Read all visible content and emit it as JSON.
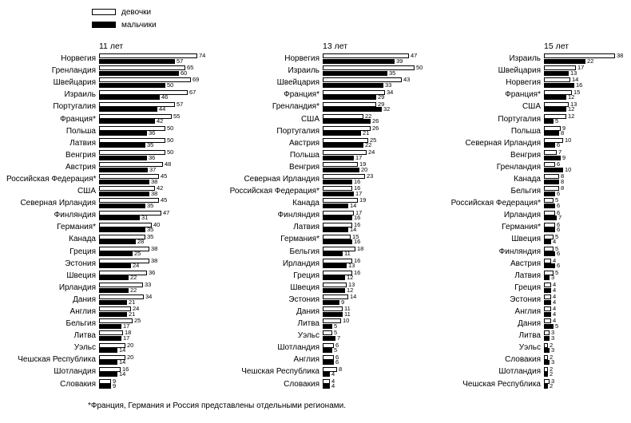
{
  "legend": {
    "girls": "девочки",
    "boys": "мальчики"
  },
  "footnote": "*Франция, Германия и Россия представлены отдельными регионами.",
  "colors": {
    "girls_fill": "#ffffff",
    "boys_fill": "#000000",
    "outline": "#000000",
    "background": "#ffffff"
  },
  "chart_data": [
    {
      "type": "bar",
      "orientation": "horizontal",
      "title": "11 лет",
      "legend_position": "top-left",
      "grid": false,
      "xlim": [
        0,
        80
      ],
      "categories": [
        "Норвегия",
        "Гренландия",
        "Швейцария",
        "Израиль",
        "Португалия",
        "Франция*",
        "Польша",
        "Латвия",
        "Венгрия",
        "Австрия",
        "Российская Федерация*",
        "США",
        "Северная Ирландия",
        "Финляндия",
        "Германия*",
        "Канада",
        "Греция",
        "Эстония",
        "Швеция",
        "Ирландия",
        "Дания",
        "Англия",
        "Бельгия",
        "Литва",
        "Уэльс",
        "Чешская Республика",
        "Шотландия",
        "Словакия"
      ],
      "series": [
        {
          "name": "девочки",
          "values": [
            74,
            65,
            69,
            67,
            57,
            55,
            50,
            50,
            50,
            48,
            45,
            42,
            45,
            47,
            40,
            35,
            38,
            38,
            36,
            33,
            34,
            24,
            25,
            18,
            20,
            20,
            16,
            9
          ]
        },
        {
          "name": "мальчики",
          "values": [
            57,
            60,
            50,
            46,
            44,
            42,
            36,
            35,
            36,
            37,
            38,
            38,
            35,
            31,
            35,
            28,
            25,
            24,
            22,
            22,
            21,
            21,
            17,
            17,
            14,
            14,
            14,
            9
          ]
        }
      ]
    },
    {
      "type": "bar",
      "orientation": "horizontal",
      "title": "13 лет",
      "grid": false,
      "xlim": [
        0,
        55
      ],
      "categories": [
        "Норвегия",
        "Израиль",
        "Швейцария",
        "Франция*",
        "Гренландия*",
        "США",
        "Португалия",
        "Австрия",
        "Польша",
        "Венгрия",
        "Северная Ирландия",
        "Российская Федерация*",
        "Канада",
        "Финляндия",
        "Латвия",
        "Германия*",
        "Бельгия",
        "Ирландия",
        "Греция",
        "Швеция",
        "Эстония",
        "Дания",
        "Литва",
        "Уэльс",
        "Шотландия",
        "Англия",
        "Чешская Республика",
        "Словакия"
      ],
      "series": [
        {
          "name": "девочки",
          "values": [
            47,
            50,
            43,
            34,
            29,
            22,
            26,
            25,
            24,
            19,
            23,
            16,
            19,
            17,
            16,
            15,
            18,
            16,
            16,
            13,
            14,
            11,
            10,
            5,
            6,
            6,
            8,
            4
          ]
        },
        {
          "name": "мальчики",
          "values": [
            39,
            35,
            33,
            29,
            32,
            26,
            21,
            22,
            17,
            20,
            16,
            17,
            14,
            16,
            14,
            16,
            11,
            13,
            12,
            12,
            9,
            11,
            5,
            7,
            5,
            6,
            4,
            4
          ]
        }
      ]
    },
    {
      "type": "bar",
      "orientation": "horizontal",
      "title": "15 лет",
      "grid": false,
      "xlim": [
        0,
        42
      ],
      "categories": [
        "Израиль",
        "Швейцария",
        "Норвегия",
        "Франция*",
        "США",
        "Португалия",
        "Польша",
        "Северная Ирландия",
        "Венгрия",
        "Гренландия",
        "Канада",
        "Бельгия",
        "Российская Федерация*",
        "Ирландия",
        "Германия*",
        "Швеция",
        "Финляндия",
        "Австрия",
        "Латвия",
        "Греция",
        "Эстония",
        "Англия",
        "Дания",
        "Литва",
        "Уэльс",
        "Словакия",
        "Шотландия",
        "Чешская Республика"
      ],
      "series": [
        {
          "name": "девочки",
          "values": [
            38,
            17,
            14,
            15,
            13,
            12,
            9,
            10,
            7,
            6,
            8,
            8,
            5,
            6,
            6,
            5,
            5,
            4,
            5,
            4,
            4,
            4,
            4,
            3,
            2,
            2,
            2,
            3
          ]
        },
        {
          "name": "мальчики",
          "values": [
            22,
            13,
            16,
            12,
            12,
            5,
            8,
            6,
            9,
            10,
            8,
            6,
            6,
            7,
            6,
            4,
            6,
            6,
            3,
            4,
            4,
            4,
            5,
            3,
            3,
            3,
            2,
            2
          ]
        }
      ]
    }
  ]
}
